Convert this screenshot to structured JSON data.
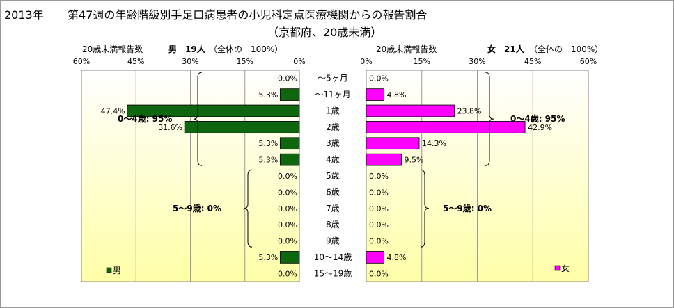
{
  "titles": {
    "year": "2013年",
    "main": "第47週の年齢階級別手足口病患者の小児科定点医療機関からの報告割合",
    "subtitle": "（京都府、20歳未満）"
  },
  "colors": {
    "male": "#0e660e",
    "female": "#ff00ff",
    "plot_top": "#ffffff",
    "plot_bottom": "#ffffa8"
  },
  "chart_data": {
    "type": "bar",
    "orientation": "horizontal-pyramid",
    "categories": [
      "〜5ヶ月",
      "〜11ヶ月",
      "1歳",
      "2歳",
      "3歳",
      "4歳",
      "5歳",
      "6歳",
      "7歳",
      "8歳",
      "9歳",
      "10〜14歳",
      "15〜19歳"
    ],
    "xlim": [
      0,
      60
    ],
    "ticks": [
      "60%",
      "45%",
      "30%",
      "15%",
      "0%"
    ],
    "ticks_right": [
      "0%",
      "15%",
      "30%",
      "45%",
      "60%"
    ],
    "grid": true,
    "series": [
      {
        "name": "男",
        "side": "left",
        "header_label": "20歳未満報告数",
        "header_count": "男　19人",
        "header_total": "（全体の　100%）",
        "values": [
          0.0,
          5.3,
          47.4,
          31.6,
          5.3,
          5.3,
          0.0,
          0.0,
          0.0,
          0.0,
          0.0,
          5.3,
          0.0
        ],
        "labels": [
          "0.0%",
          "5.3%",
          "47.4%",
          "31.6%",
          "5.3%",
          "5.3%",
          "0.0%",
          "0.0%",
          "0.0%",
          "0.0%",
          "0.0%",
          "5.3%",
          "0.0%"
        ],
        "groups": [
          {
            "label": "0〜4歳: 95%",
            "from": 0,
            "to": 5
          },
          {
            "label": "5〜9歳:  0%",
            "from": 6,
            "to": 10
          }
        ],
        "legend": "男"
      },
      {
        "name": "女",
        "side": "right",
        "header_label": "20歳未満報告数",
        "header_count": "女　21人",
        "header_total": "（全体の　100%）",
        "values": [
          0.0,
          4.8,
          23.8,
          42.9,
          14.3,
          9.5,
          0.0,
          0.0,
          0.0,
          0.0,
          0.0,
          4.8,
          0.0
        ],
        "labels": [
          "0.0%",
          "4.8%",
          "23.8%",
          "42.9%",
          "14.3%",
          "9.5%",
          "0.0%",
          "0.0%",
          "0.0%",
          "0.0%",
          "0.0%",
          "4.8%",
          "0.0%"
        ],
        "groups": [
          {
            "label": "0〜4歳: 95%",
            "from": 0,
            "to": 5
          },
          {
            "label": "5〜9歳:  0%",
            "from": 6,
            "to": 10
          }
        ],
        "legend": "女"
      }
    ]
  }
}
